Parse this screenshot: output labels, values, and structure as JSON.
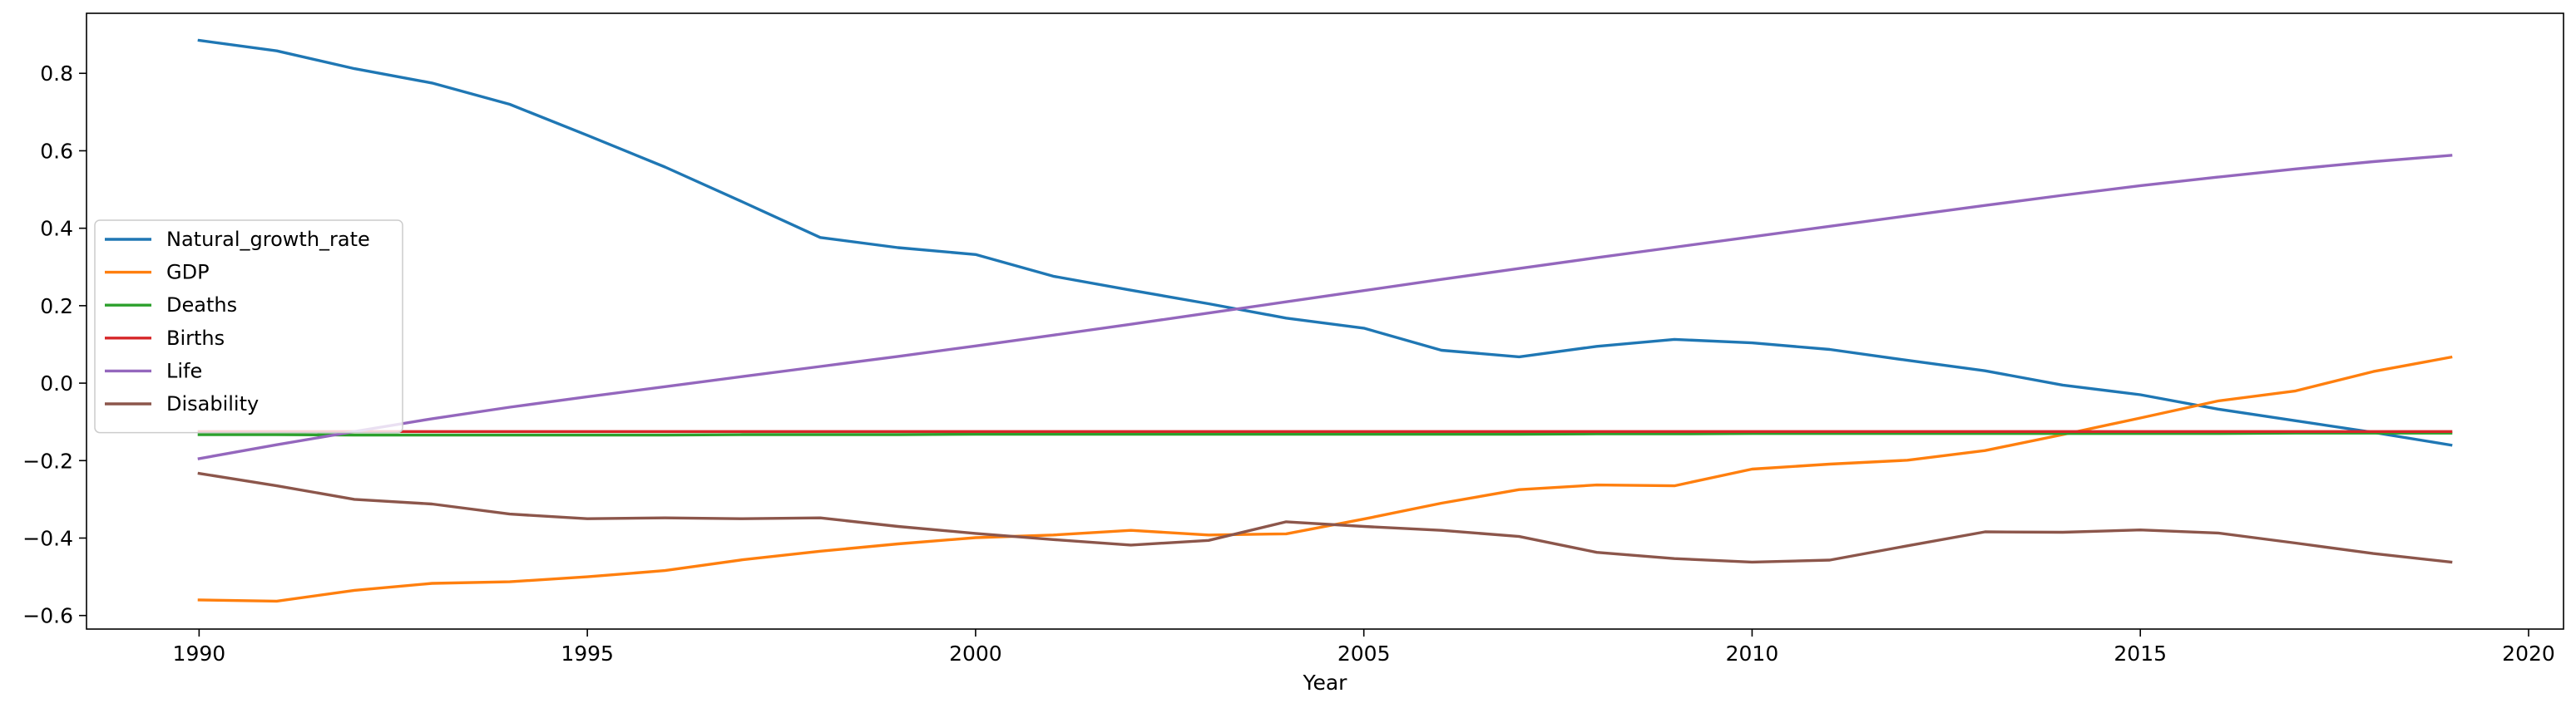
{
  "chart_data": {
    "type": "line",
    "title": "",
    "xlabel": "Year",
    "ylabel": "",
    "xlim": [
      1988.55,
      2020.45
    ],
    "ylim": [
      -0.635,
      0.955
    ],
    "xticks": [
      1990,
      1995,
      2000,
      2005,
      2010,
      2015,
      2020
    ],
    "yticks": [
      -0.6,
      -0.4,
      -0.2,
      0.0,
      0.2,
      0.4,
      0.6,
      0.8
    ],
    "ytick_labels": [
      "−0.6",
      "−0.4",
      "−0.2",
      "0.0",
      "0.2",
      "0.4",
      "0.6",
      "0.8"
    ],
    "grid": false,
    "legend_position": "center-left",
    "x": [
      1990,
      1991,
      1992,
      1993,
      1994,
      1995,
      1996,
      1997,
      1998,
      1999,
      2000,
      2001,
      2002,
      2003,
      2004,
      2005,
      2006,
      2007,
      2008,
      2009,
      2010,
      2011,
      2012,
      2013,
      2014,
      2015,
      2016,
      2017,
      2018,
      2019
    ],
    "series": [
      {
        "name": "Natural_growth_rate",
        "color": "#1f77b4",
        "values": [
          0.885,
          0.858,
          0.812,
          0.775,
          0.72,
          0.64,
          0.558,
          0.468,
          0.376,
          0.35,
          0.332,
          0.276,
          0.24,
          0.205,
          0.168,
          0.142,
          0.085,
          0.068,
          0.095,
          0.113,
          0.104,
          0.087,
          0.059,
          0.032,
          -0.005,
          -0.03,
          -0.067,
          -0.097,
          -0.127,
          -0.16
        ]
      },
      {
        "name": "GDP",
        "color": "#ff7f0e",
        "values": [
          -0.56,
          -0.563,
          -0.535,
          -0.517,
          -0.513,
          -0.5,
          -0.484,
          -0.456,
          -0.434,
          -0.415,
          -0.399,
          -0.392,
          -0.38,
          -0.392,
          -0.389,
          -0.351,
          -0.31,
          -0.275,
          -0.263,
          -0.265,
          -0.222,
          -0.209,
          -0.199,
          -0.174,
          -0.133,
          -0.09,
          -0.046,
          -0.02,
          0.03,
          0.067
        ]
      },
      {
        "name": "Deaths",
        "color": "#2ca02c",
        "values": [
          -0.133,
          -0.133,
          -0.134,
          -0.134,
          -0.134,
          -0.134,
          -0.134,
          -0.133,
          -0.133,
          -0.133,
          -0.132,
          -0.132,
          -0.132,
          -0.132,
          -0.132,
          -0.132,
          -0.132,
          -0.132,
          -0.131,
          -0.131,
          -0.13,
          -0.13,
          -0.13,
          -0.13,
          -0.13,
          -0.13,
          -0.13,
          -0.129,
          -0.129,
          -0.129
        ]
      },
      {
        "name": "Births",
        "color": "#d62728",
        "values": [
          -0.125,
          -0.125,
          -0.125,
          -0.125,
          -0.125,
          -0.125,
          -0.125,
          -0.125,
          -0.125,
          -0.125,
          -0.125,
          -0.125,
          -0.125,
          -0.125,
          -0.125,
          -0.125,
          -0.125,
          -0.125,
          -0.125,
          -0.125,
          -0.125,
          -0.125,
          -0.125,
          -0.125,
          -0.125,
          -0.125,
          -0.125,
          -0.125,
          -0.125,
          -0.125
        ]
      },
      {
        "name": "Life",
        "color": "#9467bd",
        "values": [
          -0.195,
          -0.159,
          -0.125,
          -0.092,
          -0.062,
          -0.035,
          -0.009,
          0.017,
          0.043,
          0.069,
          0.096,
          0.124,
          0.152,
          0.181,
          0.21,
          0.239,
          0.268,
          0.296,
          0.324,
          0.351,
          0.378,
          0.405,
          0.432,
          0.459,
          0.485,
          0.51,
          0.532,
          0.553,
          0.572,
          0.588
        ]
      },
      {
        "name": "Disability",
        "color": "#8c564b",
        "values": [
          -0.233,
          -0.265,
          -0.3,
          -0.312,
          -0.338,
          -0.35,
          -0.348,
          -0.35,
          -0.348,
          -0.37,
          -0.388,
          -0.404,
          -0.418,
          -0.406,
          -0.358,
          -0.37,
          -0.38,
          -0.396,
          -0.437,
          -0.453,
          -0.462,
          -0.457,
          -0.42,
          -0.384,
          -0.385,
          -0.379,
          -0.387,
          -0.413,
          -0.44,
          -0.462
        ]
      }
    ]
  }
}
